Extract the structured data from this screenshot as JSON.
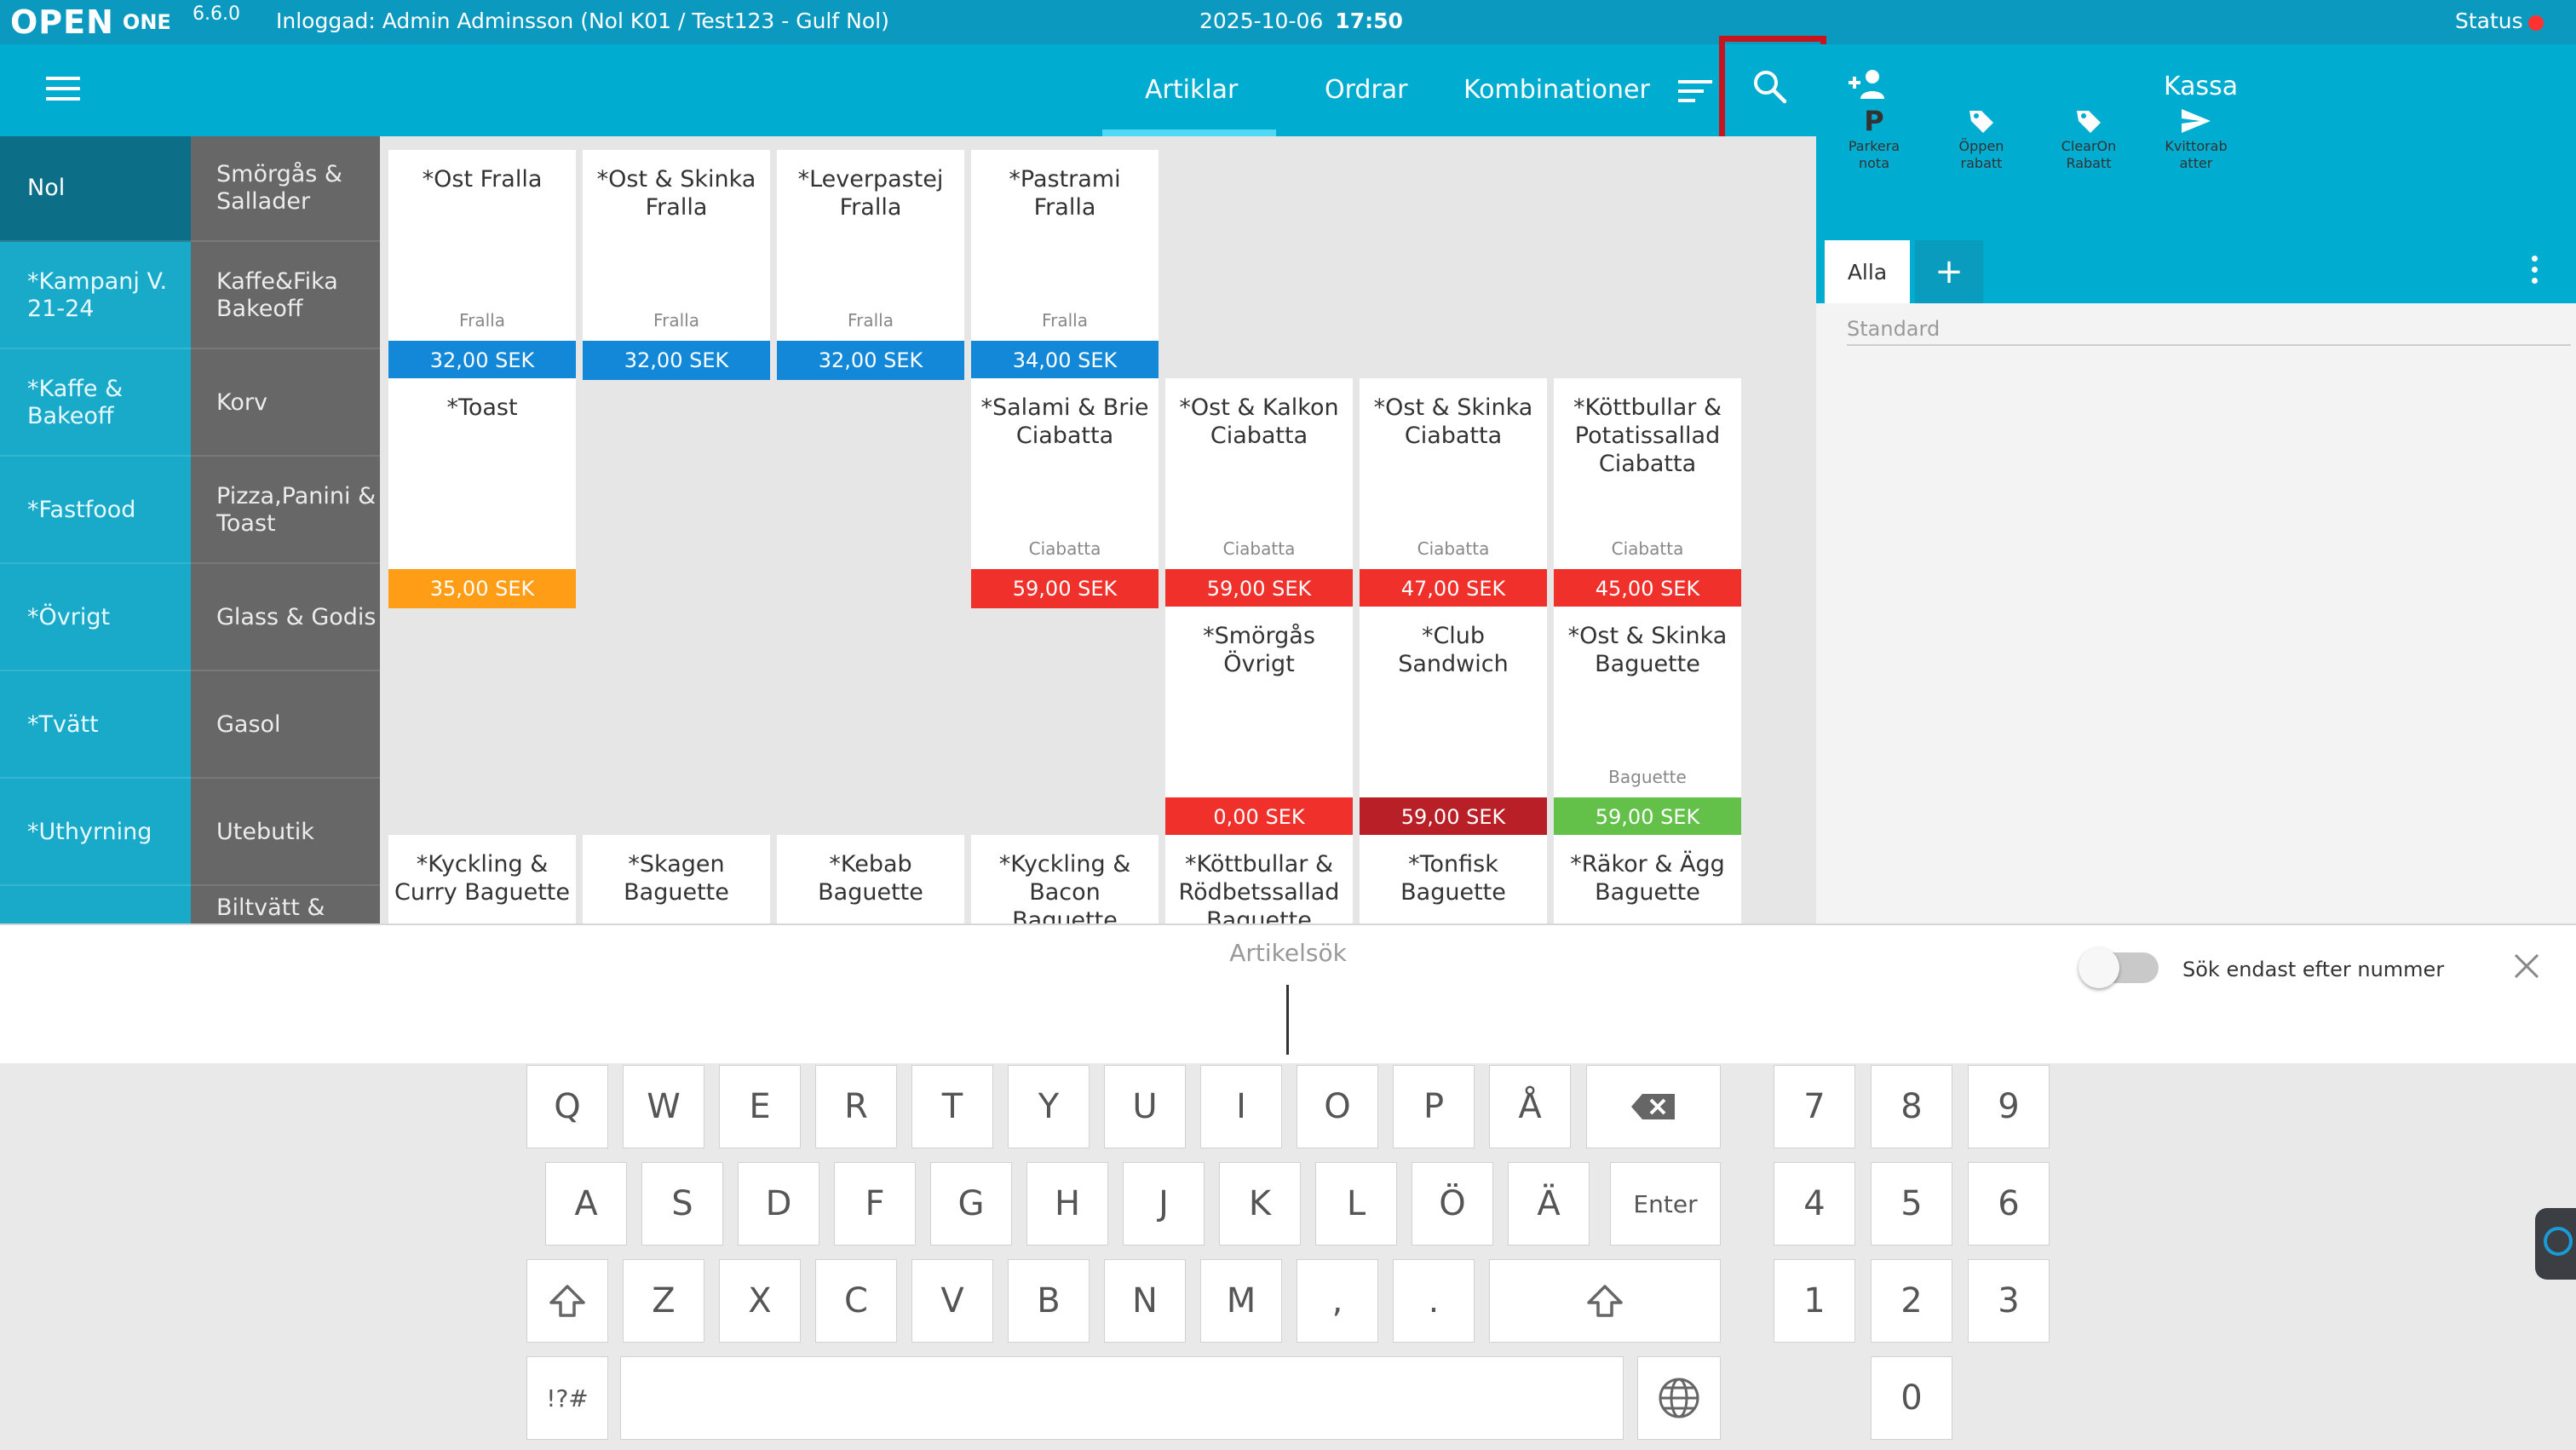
{
  "topbar": {
    "logo": "OPEN",
    "logo_sub": "ONE",
    "version": "6.6.0",
    "login": "Inloggad: Admin Adminsson (Nol K01 / Test123 - Gulf Nol)",
    "date": "2025-10-06",
    "time": "17:50",
    "status_label": "Status",
    "status_color": "#ff3131"
  },
  "nav": {
    "menu_icon": "hamburger-menu-icon",
    "tabs": [
      "Artiklar",
      "Ordrar",
      "Kombinationer"
    ],
    "active_tab": "Artiklar",
    "sort_icon": "sort-icon",
    "search_icon": "search-icon"
  },
  "right_panel": {
    "add_user_icon": "add-user-icon",
    "title": "Kassa",
    "actions": [
      {
        "label": "Parkera nota",
        "icon": "P"
      },
      {
        "label": "Öppen rabatt",
        "icon": "tag-icon"
      },
      {
        "label": "ClearOn Rabatt",
        "icon": "tag-icon"
      },
      {
        "label": "Kvittorab atter",
        "icon": "send-icon"
      }
    ],
    "sale_tab": "Alla",
    "add_tab": "+",
    "list_placeholder": "Standard"
  },
  "categories_primary": [
    {
      "label": "Nol",
      "active": true
    },
    {
      "label": "*Kampanj V. 21-24"
    },
    {
      "label": "*Kaffe & Bakeoff"
    },
    {
      "label": "*Fastfood"
    },
    {
      "label": "*Övrigt"
    },
    {
      "label": "*Tvätt"
    },
    {
      "label": "*Uthyrning"
    },
    {
      "label": ""
    }
  ],
  "categories_secondary": [
    {
      "label": "Smörgås & Sallader"
    },
    {
      "label": "Kaffe&Fika Bakeoff"
    },
    {
      "label": "Korv"
    },
    {
      "label": "Pizza,Panini & Toast"
    },
    {
      "label": "Glass & Godis"
    },
    {
      "label": "Gasol"
    },
    {
      "label": "Utebutik"
    },
    {
      "label": "Biltvätt &"
    }
  ],
  "products": [
    {
      "name": "*Ost Fralla",
      "category": "Fralla",
      "price": "32,00 SEK",
      "color": "#1488d8"
    },
    {
      "name": "*Ost & Skinka Fralla",
      "category": "Fralla",
      "price": "32,00 SEK",
      "color": "#1488d8"
    },
    {
      "name": "*Leverpastej Fralla",
      "category": "Fralla",
      "price": "32,00 SEK",
      "color": "#1488d8"
    },
    {
      "name": "*Pastrami Fralla",
      "category": "Fralla",
      "price": "34,00 SEK",
      "color": "#1488d8"
    },
    {
      "name": "*Toast",
      "category": "",
      "price": "35,00 SEK",
      "color": "#ff9d16"
    },
    {
      "name": "*Salami & Brie Ciabatta",
      "category": "Ciabatta",
      "price": "59,00 SEK",
      "color": "#f0302b"
    },
    {
      "name": "*Ost & Kalkon Ciabatta",
      "category": "Ciabatta",
      "price": "59,00 SEK",
      "color": "#f0302b"
    },
    {
      "name": "*Ost & Skinka Ciabatta",
      "category": "Ciabatta",
      "price": "47,00 SEK",
      "color": "#f0302b"
    },
    {
      "name": "*Köttbullar & Potatissallad Ciabatta",
      "category": "Ciabatta",
      "price": "45,00 SEK",
      "color": "#f0302b"
    },
    {
      "name": "*Smörgås Övrigt",
      "category": "",
      "price": "0,00 SEK",
      "color": "#f0302b"
    },
    {
      "name": "*Club Sandwich",
      "category": "",
      "price": "59,00 SEK",
      "color": "#b81f27"
    },
    {
      "name": "*Ost & Skinka Baguette",
      "category": "Baguette",
      "price": "59,00 SEK",
      "color": "#63c14a"
    },
    {
      "name": "*Kyckling & Curry Baguette",
      "category": "",
      "price": "",
      "color": ""
    },
    {
      "name": "*Skagen Baguette",
      "category": "",
      "price": "",
      "color": ""
    },
    {
      "name": "*Kebab Baguette",
      "category": "",
      "price": "",
      "color": ""
    },
    {
      "name": "*Kyckling & Bacon Baguette",
      "category": "",
      "price": "",
      "color": ""
    },
    {
      "name": "*Köttbullar & Rödbetssallad Baguette",
      "category": "",
      "price": "",
      "color": ""
    },
    {
      "name": "*Tonfisk Baguette",
      "category": "",
      "price": "",
      "color": ""
    },
    {
      "name": "*Räkor & Ägg Baguette",
      "category": "",
      "price": "",
      "color": ""
    }
  ],
  "search": {
    "title": "Artikelsök",
    "value": "",
    "toggle_label": "Sök endast efter nummer",
    "toggle_on": false,
    "close_icon": "close-icon"
  },
  "keyboard": {
    "row1": [
      "Q",
      "W",
      "E",
      "R",
      "T",
      "Y",
      "U",
      "I",
      "O",
      "P",
      "Å"
    ],
    "row2": [
      "A",
      "S",
      "D",
      "F",
      "G",
      "H",
      "J",
      "K",
      "L",
      "Ö",
      "Ä"
    ],
    "row3": [
      "Z",
      "X",
      "C",
      "V",
      "B",
      "N",
      "M",
      ",",
      "."
    ],
    "enter": "Enter",
    "symbols": "!?#",
    "backspace_icon": "backspace-icon",
    "shift_icon": "shift-icon",
    "globe_icon": "globe-icon",
    "numpad": [
      "7",
      "8",
      "9",
      "4",
      "5",
      "6",
      "1",
      "2",
      "3",
      "0"
    ]
  }
}
